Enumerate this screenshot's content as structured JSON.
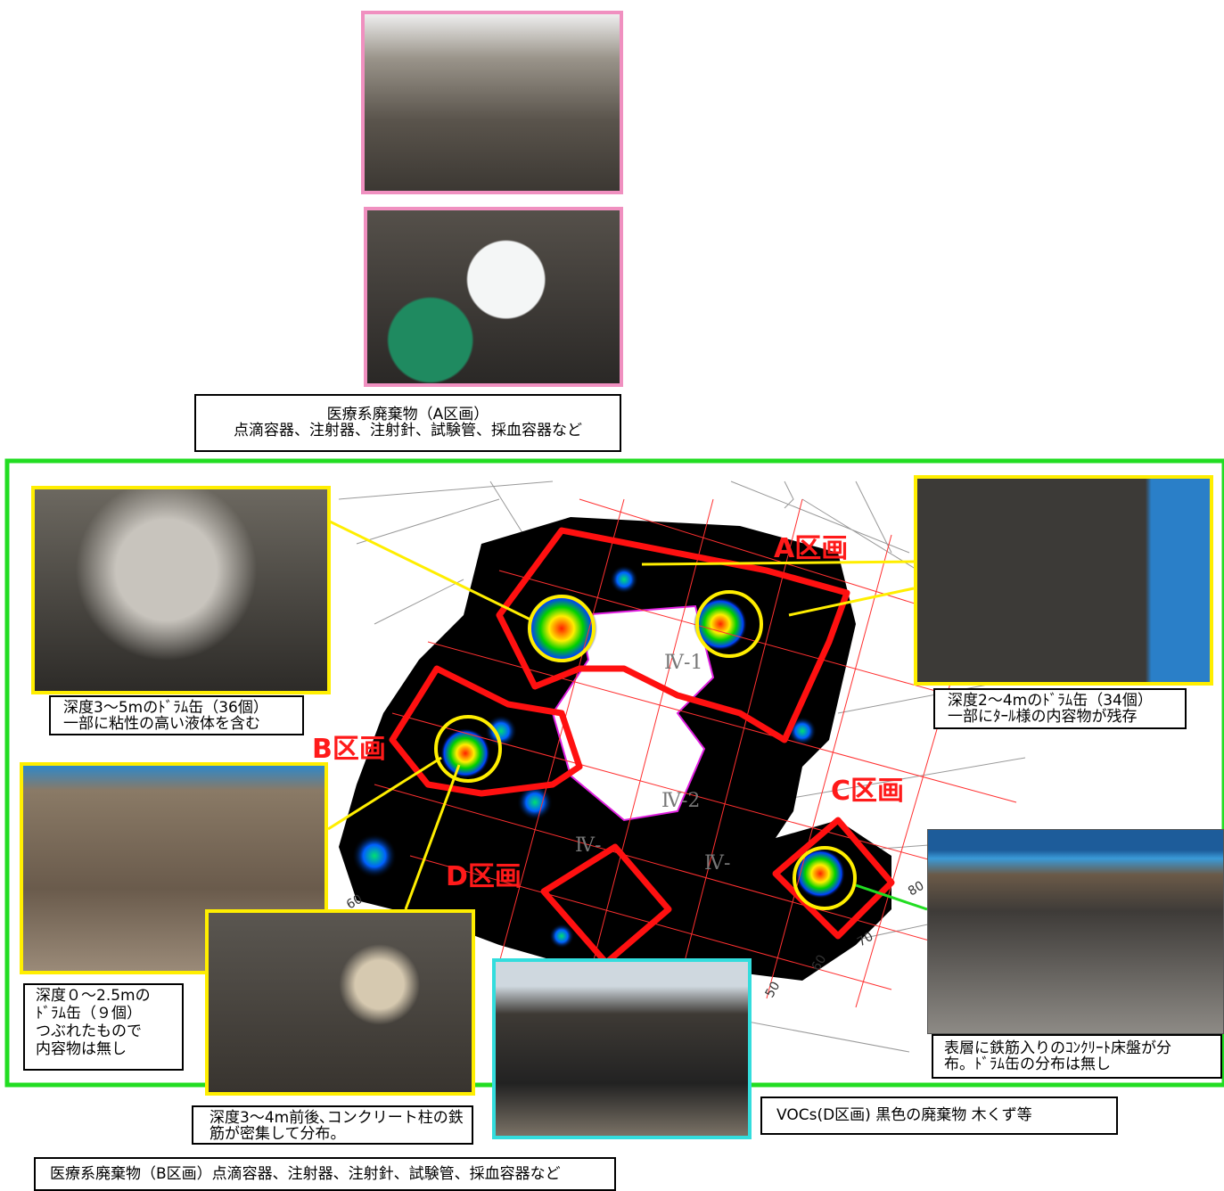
{
  "captions": {
    "a_block": [
      "医療系廃棄物（A区画）",
      "点滴容器、注射器、注射針、試験管、採血容器など"
    ],
    "upper_left": [
      "深度3～5mのﾄﾞﾗﾑ缶（36個）",
      "一部に粘性の高い液体を含む"
    ],
    "upper_right": [
      "深度2～4mのﾄﾞﾗﾑ缶（34個）",
      "一部にﾀｰﾙ様の内容物が残存"
    ],
    "lower_left": [
      "深度０～2.5mの",
      "ﾄﾞﾗﾑ缶（９個）",
      "つぶれたもので",
      "内容物は無し"
    ],
    "lower_middle": [
      "深度3～4m前後､コンクリート柱の鉄",
      "筋が密集して分布。"
    ],
    "lower_right": [
      "表層に鉄筋入りのｺﾝｸﾘｰﾄ床盤が分",
      "布。ﾄﾞﾗﾑ缶の分布は無し"
    ],
    "vocs": "VOCs(D区画) 黒色の廃棄物 木くず等",
    "b_block": "医療系廃棄物（B区画）点滴容器、注射器、注射針、試験管、採血容器など"
  },
  "map": {
    "zones": [
      "A区画",
      "B区画",
      "C区画",
      "D区画"
    ],
    "sections": [
      "Ⅳ-1",
      "Ⅳ-2",
      "Ⅳ-",
      "Ⅳ-"
    ],
    "grid_numbers": [
      "60",
      "70",
      "80",
      "50",
      "60"
    ]
  }
}
